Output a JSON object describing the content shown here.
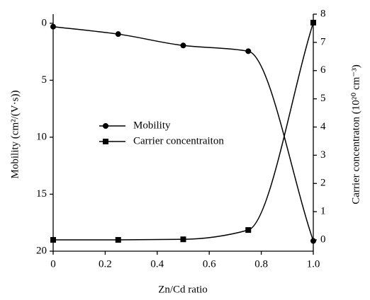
{
  "chart_data": {
    "type": "line",
    "x_label": "Zn/Cd ratio",
    "y_label": "Mobility (cm²/(V·s))",
    "y2_label": "Carrier concentraton (10²⁰ cm⁻³)",
    "x": [
      0,
      0.25,
      0.5,
      0.75,
      1
    ],
    "series": [
      {
        "name": "Mobility",
        "color": "#000000",
        "marker": "circle",
        "values": [
          0.3,
          0.95,
          1.95,
          2.45,
          19.1
        ]
      },
      {
        "name": "Carrier concentraiton",
        "color": "#000000",
        "marker": "square",
        "axis": "y2",
        "values": [
          0,
          0,
          0.02,
          0.35,
          7.7
        ]
      }
    ],
    "xlim": [
      0,
      1
    ],
    "xticks": [
      0,
      0.2,
      0.4,
      0.6,
      0.8,
      {
        "value": 1,
        "label": "1.0"
      }
    ],
    "ylim": [
      -0.8,
      20
    ],
    "y_inverted": true,
    "yticks": [
      0,
      5,
      10,
      15,
      20
    ],
    "y2lim": [
      -0.4,
      8
    ],
    "y2ticks": [
      0,
      1,
      2,
      3,
      4,
      5,
      6,
      7,
      8
    ],
    "smooth": true,
    "grid": false,
    "legend": "center"
  }
}
